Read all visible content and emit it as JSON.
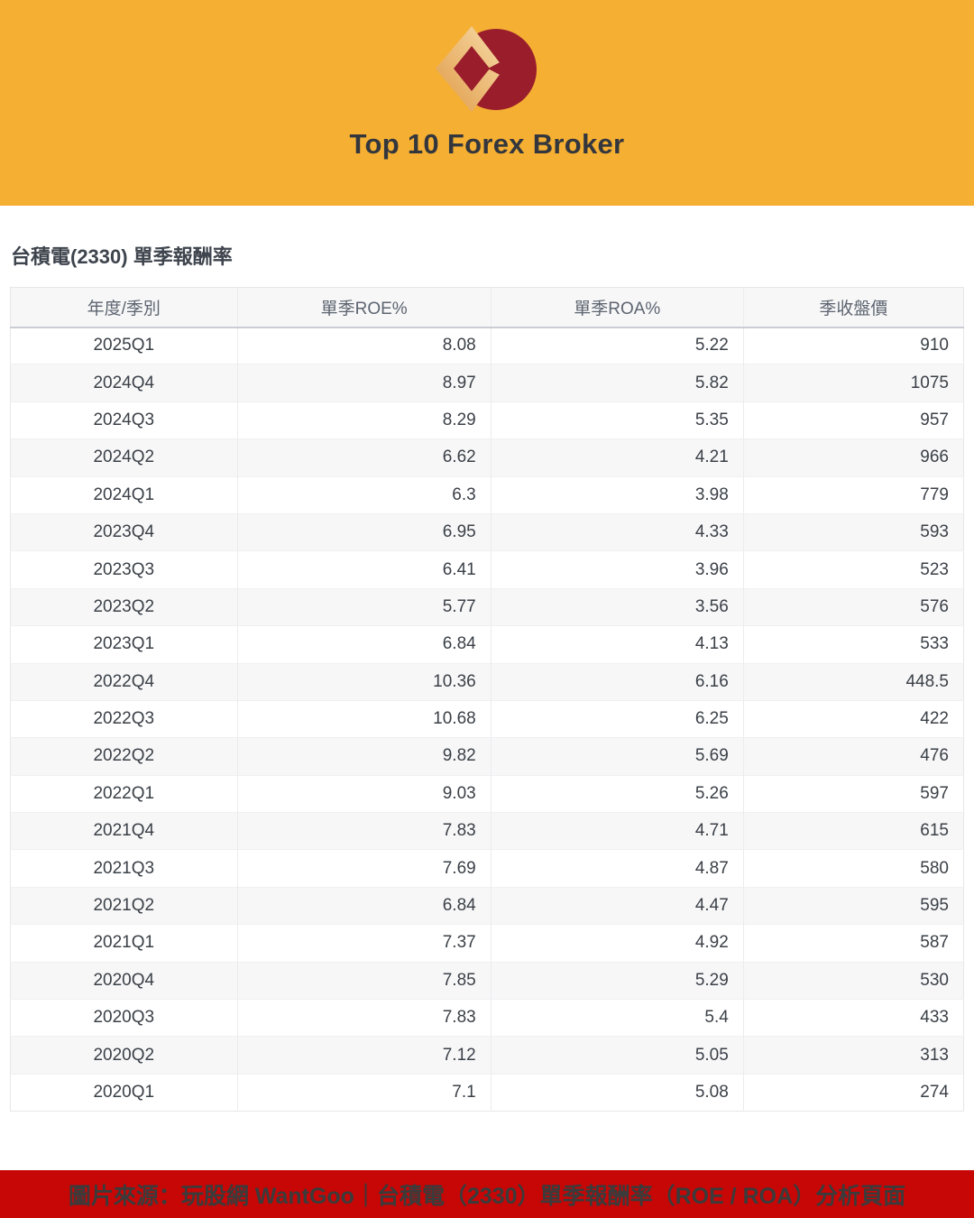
{
  "banner": {
    "title": "Top 10 Forex Broker"
  },
  "chart_data": {
    "type": "table",
    "title": "台積電(2330) 單季報酬率",
    "columns": [
      "年度/季別",
      "單季ROE%",
      "單季ROA%",
      "季收盤價"
    ],
    "rows": [
      [
        "2025Q1",
        "8.08",
        "5.22",
        "910"
      ],
      [
        "2024Q4",
        "8.97",
        "5.82",
        "1075"
      ],
      [
        "2024Q3",
        "8.29",
        "5.35",
        "957"
      ],
      [
        "2024Q2",
        "6.62",
        "4.21",
        "966"
      ],
      [
        "2024Q1",
        "6.3",
        "3.98",
        "779"
      ],
      [
        "2023Q4",
        "6.95",
        "4.33",
        "593"
      ],
      [
        "2023Q3",
        "6.41",
        "3.96",
        "523"
      ],
      [
        "2023Q2",
        "5.77",
        "3.56",
        "576"
      ],
      [
        "2023Q1",
        "6.84",
        "4.13",
        "533"
      ],
      [
        "2022Q4",
        "10.36",
        "6.16",
        "448.5"
      ],
      [
        "2022Q3",
        "10.68",
        "6.25",
        "422"
      ],
      [
        "2022Q2",
        "9.82",
        "5.69",
        "476"
      ],
      [
        "2022Q1",
        "9.03",
        "5.26",
        "597"
      ],
      [
        "2021Q4",
        "7.83",
        "4.71",
        "615"
      ],
      [
        "2021Q3",
        "7.69",
        "4.87",
        "580"
      ],
      [
        "2021Q2",
        "6.84",
        "4.47",
        "595"
      ],
      [
        "2021Q1",
        "7.37",
        "4.92",
        "587"
      ],
      [
        "2020Q4",
        "7.85",
        "5.29",
        "530"
      ],
      [
        "2020Q3",
        "7.83",
        "5.4",
        "433"
      ],
      [
        "2020Q2",
        "7.12",
        "5.05",
        "313"
      ],
      [
        "2020Q1",
        "7.1",
        "5.08",
        "274"
      ]
    ]
  },
  "footer": {
    "source_text": "圖片來源：玩股網 WantGoo｜台積電（2330）單季報酬率（ROE / ROA）分析頁面"
  },
  "colors": {
    "banner_bg": "#F5AF33",
    "banner_title_color": "#33373D",
    "footer_bg": "#C70606",
    "footer_text_color": "#3B3B3B",
    "logo_maroon": "#9A1D2C",
    "logo_gold": "#E2A35A"
  }
}
